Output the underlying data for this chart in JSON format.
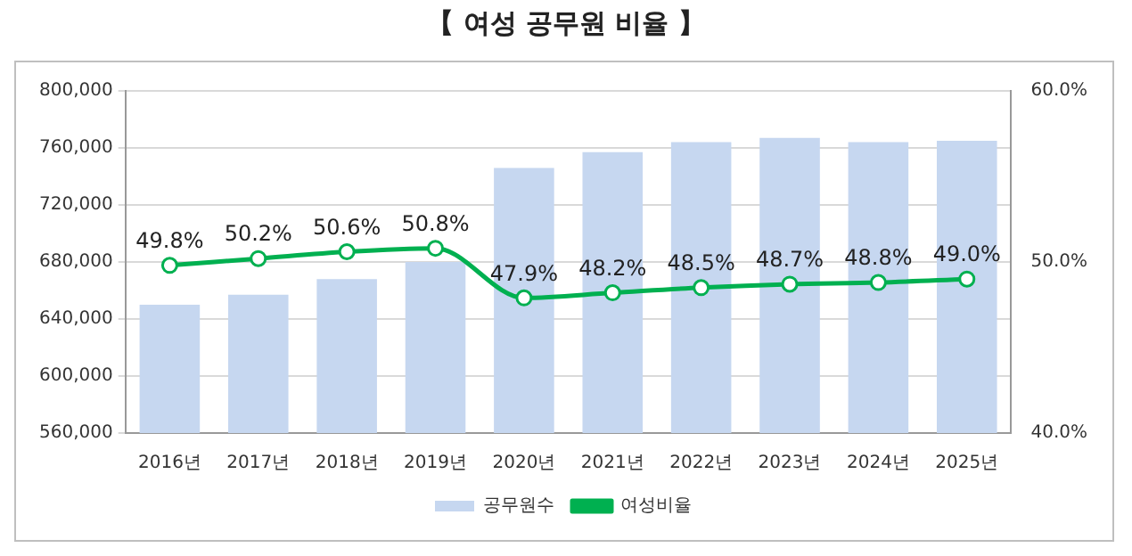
{
  "chart_data": {
    "type": "bar",
    "title": "【 여성 공무원 비율 】",
    "categories": [
      "2016년",
      "2017년",
      "2018년",
      "2019년",
      "2020년",
      "2021년",
      "2022년",
      "2023년",
      "2024년",
      "2025년"
    ],
    "series": [
      {
        "name": "공무원수",
        "color": "#c6d7f0",
        "values": [
          650000,
          657000,
          668000,
          680000,
          746000,
          757000,
          764000,
          767000,
          764000,
          765000
        ]
      },
      {
        "name": "여성비율",
        "type": "line",
        "axis": "y2",
        "color": "#00b050",
        "values": [
          49.8,
          50.2,
          50.6,
          50.8,
          47.9,
          48.2,
          48.5,
          48.7,
          48.8,
          49.0
        ],
        "value_labels": [
          "49.8%",
          "50.2%",
          "50.6%",
          "50.8%",
          "47.9%",
          "48.2%",
          "48.5%",
          "48.7%",
          "48.8%",
          "49.0%"
        ]
      }
    ],
    "ylim": [
      560000,
      800000
    ],
    "yticks": [
      {
        "value": 560000,
        "label": "560,000"
      },
      {
        "value": 600000,
        "label": "600,000"
      },
      {
        "value": 640000,
        "label": "640,000"
      },
      {
        "value": 680000,
        "label": "680,000"
      },
      {
        "value": 720000,
        "label": "720,000"
      },
      {
        "value": 760000,
        "label": "760,000"
      },
      {
        "value": 800000,
        "label": "800,000"
      }
    ],
    "y2lim": [
      40,
      60
    ],
    "y2ticks": [
      {
        "value": 40,
        "label": "40.0%"
      },
      {
        "value": 50,
        "label": "50.0%"
      },
      {
        "value": 60,
        "label": "60.0%"
      }
    ],
    "grid": "y",
    "legend": "bottom",
    "marker": "circle"
  }
}
